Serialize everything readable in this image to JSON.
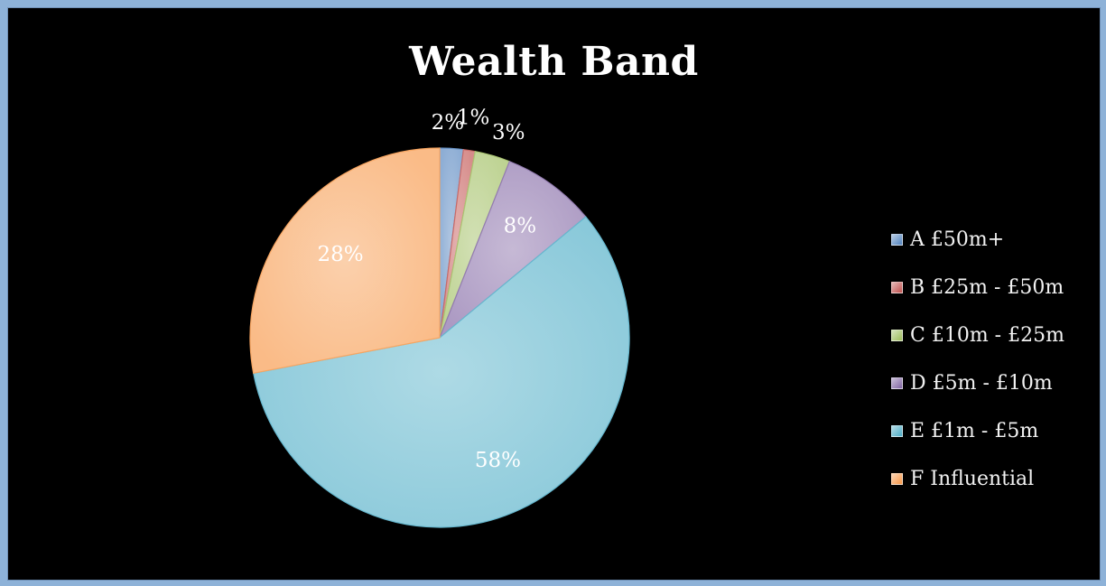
{
  "chart_data": {
    "type": "pie",
    "title": "Wealth Band",
    "legend_position": "right",
    "slices": [
      {
        "name": "A £50m+",
        "value": 2,
        "label": "2%",
        "color": "#4f81bd"
      },
      {
        "name": "B £25m - £50m",
        "value": 1,
        "label": "1%",
        "color": "#c0504d"
      },
      {
        "name": "C £10m - £25m",
        "value": 3,
        "label": "3%",
        "color": "#9bbb59"
      },
      {
        "name": "D £5m - £10m",
        "value": 8,
        "label": "8%",
        "color": "#8064a2"
      },
      {
        "name": "E £1m - £5m",
        "value": 58,
        "label": "58%",
        "color": "#4bacc6"
      },
      {
        "name": "F Influential",
        "value": 28,
        "label": "28%",
        "color": "#f79646"
      }
    ]
  }
}
